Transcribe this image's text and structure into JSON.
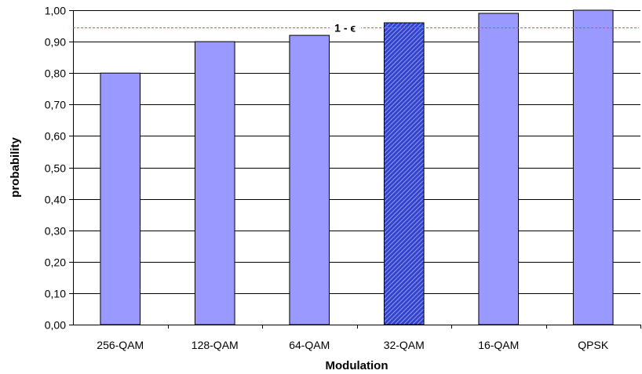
{
  "chart_data": {
    "type": "bar",
    "title": "",
    "xlabel": "Modulation",
    "ylabel": "probability",
    "categories": [
      "256-QAM",
      "128-QAM",
      "64-QAM",
      "32-QAM",
      "16-QAM",
      "QPSK"
    ],
    "values": [
      0.8,
      0.9,
      0.92,
      0.96,
      0.99,
      1.0
    ],
    "highlighted_index": 3,
    "ylim": [
      0,
      1
    ],
    "yticks": [
      "0,00",
      "0,10",
      "0,20",
      "0,30",
      "0,40",
      "0,50",
      "0,60",
      "0,70",
      "0,80",
      "0,90",
      "1,00"
    ],
    "grid": true,
    "legend": "none",
    "threshold": {
      "value": 0.945,
      "label": "1 - ϵ",
      "color": "#e05050"
    },
    "colors": {
      "bar": "#9999ff",
      "highlight_bar": "#3344cc",
      "bar_border": "#000000"
    }
  }
}
